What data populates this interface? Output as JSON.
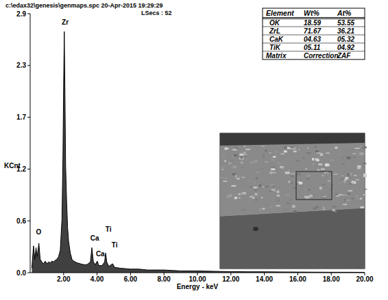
{
  "header": {
    "file": "c:\\edax32\\genesis\\genmaps.spc  20-Apr-2015 19:29:29",
    "live_seconds": "LSecs : 52"
  },
  "chart_data": {
    "type": "line",
    "x_label": "Energy - keV",
    "y_label": "KCnt",
    "x": [
      0.1,
      0.2,
      0.28,
      0.35,
      0.42,
      0.52,
      0.6,
      0.7,
      0.8,
      0.9,
      1.0,
      1.1,
      1.2,
      1.3,
      1.4,
      1.5,
      1.6,
      1.7,
      1.8,
      1.9,
      1.96,
      2.0,
      2.04,
      2.08,
      2.12,
      2.18,
      2.24,
      2.3,
      2.4,
      2.5,
      2.6,
      2.8,
      3.0,
      3.2,
      3.4,
      3.6,
      3.69,
      3.78,
      3.9,
      4.01,
      4.1,
      4.3,
      4.45,
      4.51,
      4.58,
      4.7,
      4.93,
      5.05,
      5.4,
      6.0,
      6.5,
      7.0,
      7.5,
      8.0,
      9.0,
      10.0,
      11.0,
      12.0,
      13.0,
      14.0,
      15.0,
      16.0,
      17.0,
      18.0,
      19.0,
      20.0
    ],
    "values": [
      0.05,
      0.3,
      0.15,
      0.28,
      0.18,
      0.33,
      0.15,
      0.12,
      0.1,
      0.13,
      0.1,
      0.12,
      0.11,
      0.13,
      0.12,
      0.14,
      0.15,
      0.18,
      0.25,
      0.6,
      1.3,
      2.1,
      2.7,
      2.0,
      1.2,
      0.8,
      0.5,
      0.35,
      0.22,
      0.15,
      0.13,
      0.11,
      0.1,
      0.09,
      0.09,
      0.12,
      0.28,
      0.12,
      0.09,
      0.13,
      0.08,
      0.08,
      0.12,
      0.22,
      0.12,
      0.07,
      0.1,
      0.06,
      0.05,
      0.04,
      0.04,
      0.03,
      0.03,
      0.03,
      0.02,
      0.02,
      0.015,
      0.012,
      0.01,
      0.01,
      0.008,
      0.007,
      0.006,
      0.005,
      0.005,
      0.004
    ],
    "color": "#000000",
    "grid": false,
    "xlim": [
      0,
      20
    ],
    "xticks": [
      {
        "value": 2,
        "label": "2.00"
      },
      {
        "value": 4,
        "label": "4.00"
      },
      {
        "value": 6,
        "label": "6.00"
      },
      {
        "value": 8,
        "label": "8.00"
      },
      {
        "value": 10,
        "label": "10.00"
      },
      {
        "value": 12,
        "label": "12.00"
      },
      {
        "value": 14,
        "label": "14.00"
      },
      {
        "value": 16,
        "label": "16.00"
      },
      {
        "value": 18,
        "label": "18.00"
      },
      {
        "value": 20,
        "label": "20.00"
      }
    ],
    "ylim": [
      0,
      2.9
    ],
    "yticks": [
      {
        "value": 0,
        "label": "0.0"
      },
      {
        "value": 0.58,
        "label": "0.6"
      },
      {
        "value": 1.16,
        "label": "1.2"
      },
      {
        "value": 1.74,
        "label": "1.7"
      },
      {
        "value": 2.32,
        "label": "2.3"
      },
      {
        "value": 2.9,
        "label": "2.9"
      }
    ],
    "annotations": [
      {
        "text": "O",
        "x": 0.35,
        "y": 0.43
      },
      {
        "text": "Zr",
        "x": 1.89,
        "y": 2.78
      },
      {
        "text": "Ca",
        "x": 3.6,
        "y": 0.36
      },
      {
        "text": "Ti",
        "x": 4.5,
        "y": 0.46
      },
      {
        "text": "Ca",
        "x": 3.93,
        "y": 0.18
      },
      {
        "text": "Ti",
        "x": 4.87,
        "y": 0.28
      }
    ]
  },
  "table": {
    "columns": [
      "Element",
      "Wt%",
      "At%"
    ],
    "rows": [
      [
        "OK",
        "18.59",
        "53.55"
      ],
      [
        "ZrL",
        "71.67",
        "36.21"
      ],
      [
        "CaK",
        "04.63",
        "05.32"
      ],
      [
        "TiK",
        "05.11",
        "04.92"
      ],
      [
        "Matrix",
        "Correction",
        "ZAF"
      ]
    ]
  }
}
